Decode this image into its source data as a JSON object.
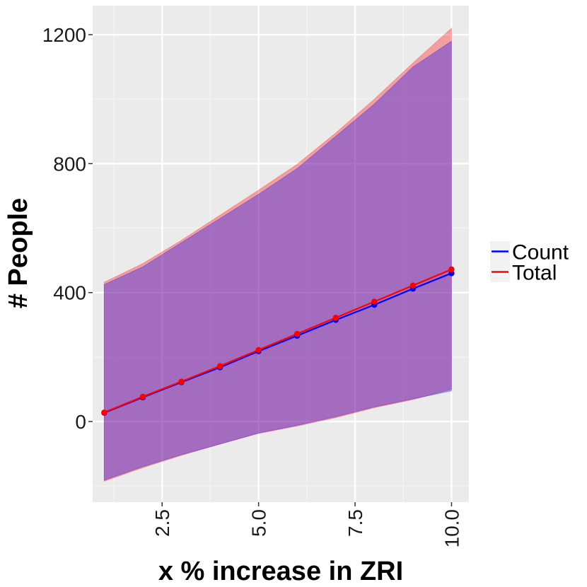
{
  "chart_data": {
    "type": "line",
    "title": "",
    "xlabel": "x % increase in ZRI",
    "ylabel": "# People",
    "xlim": [
      0.7,
      10.45
    ],
    "ylim": [
      -250,
      1290
    ],
    "x_ticks": [
      2.5,
      5.0,
      7.5,
      10.0
    ],
    "x_tick_labels": [
      "2.5",
      "5.0",
      "7.5",
      "10.0"
    ],
    "y_ticks": [
      0,
      400,
      800,
      1200
    ],
    "y_tick_labels": [
      "0",
      "400",
      "800",
      "1200"
    ],
    "grid": true,
    "legend": {
      "position": "right",
      "entries": [
        "Count",
        "Total"
      ]
    },
    "x": [
      1,
      2,
      3,
      4,
      5,
      6,
      7,
      8,
      9,
      10
    ],
    "series": [
      {
        "name": "Count",
        "color": "#0000ff",
        "values": [
          27,
          75,
          122,
          168,
          218,
          266,
          315,
          362,
          412,
          460
        ],
        "lower": [
          -182,
          -140,
          -103,
          -70,
          -36,
          -12,
          15,
          45,
          70,
          95
        ],
        "upper": [
          425,
          480,
          555,
          630,
          705,
          785,
          885,
          985,
          1100,
          1180
        ]
      },
      {
        "name": "Total",
        "color": "#ff0000",
        "values": [
          28,
          77,
          124,
          172,
          222,
          272,
          322,
          372,
          422,
          472
        ],
        "lower": [
          -185,
          -143,
          -105,
          -70,
          -37,
          -14,
          12,
          43,
          68,
          100
        ],
        "upper": [
          432,
          490,
          562,
          640,
          718,
          798,
          895,
          1000,
          1112,
          1220
        ]
      }
    ]
  }
}
